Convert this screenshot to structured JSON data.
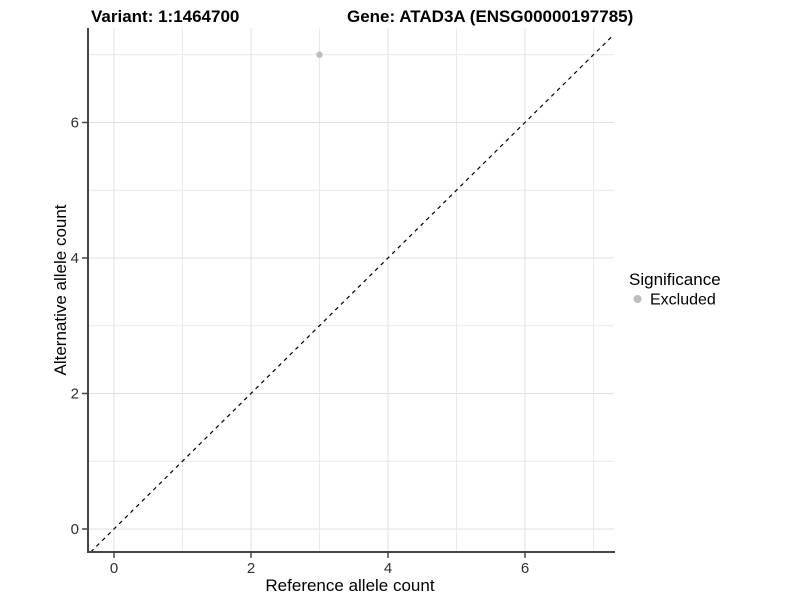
{
  "chart_data": {
    "type": "scatter",
    "titles": {
      "left": "Variant: 1:1464700",
      "right": "Gene: ATAD3A (ENSG00000197785)"
    },
    "xlabel": "Reference allele count",
    "ylabel": "Alternative allele count",
    "xticks": [
      0,
      2,
      4,
      6
    ],
    "yticks": [
      0,
      2,
      4,
      6
    ],
    "xlim": [
      -0.4,
      7.3
    ],
    "ylim": [
      -0.35,
      7.4
    ],
    "grid": {
      "major_x": [
        0,
        2,
        4,
        6
      ],
      "minor_x": [
        1,
        3,
        5,
        7
      ],
      "major_y": [
        0,
        2,
        4,
        6
      ],
      "minor_y": [
        1,
        3,
        5,
        7
      ],
      "background": "#ffffff"
    },
    "series": [
      {
        "name": "Excluded",
        "color": "#bdbdbd",
        "points": [
          {
            "x": 3,
            "y": 7
          }
        ]
      }
    ],
    "reference_line": {
      "equation": "y = x",
      "style": "dashed",
      "color": "#000000"
    },
    "legend": {
      "title": "Significance",
      "position": "right",
      "items": [
        {
          "label": "Excluded",
          "color": "#bdbdbd"
        }
      ]
    }
  },
  "colors": {
    "axis_line": "#454545",
    "tick_text": "#303030",
    "grid_major": "#e0e0e0",
    "grid_minor": "#e9e9e9"
  }
}
